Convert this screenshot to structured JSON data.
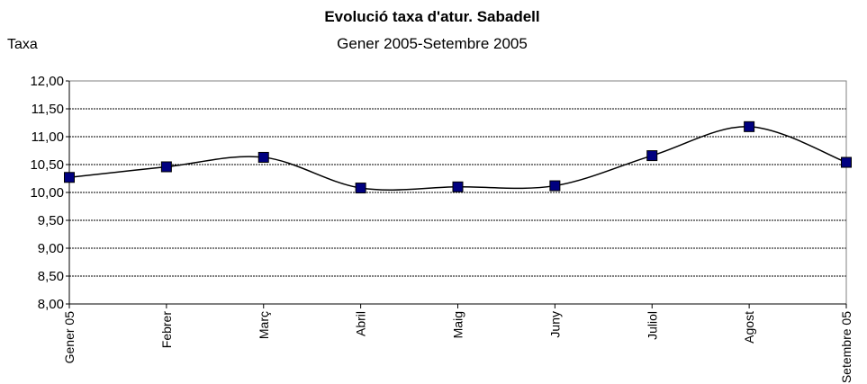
{
  "chart_data": {
    "type": "line",
    "title": "Evolució taxa d'atur. Sabadell",
    "subtitle": "Gener 2005-Setembre 2005",
    "y_label": "Taxa",
    "categories": [
      "Gener 05",
      "Febrer",
      "Març",
      "Abril",
      "Maig",
      "Juny",
      "Juliol",
      "Agost",
      "Setembre 05"
    ],
    "series": [
      {
        "name": "Taxa",
        "color": "#000080",
        "values": [
          10.27,
          10.46,
          10.63,
          10.08,
          10.1,
          10.12,
          10.66,
          11.18,
          10.54
        ]
      }
    ],
    "ylim": [
      8,
      12
    ],
    "yticks": [
      {
        "value": 8,
        "label": "8,00"
      },
      {
        "value": 8.5,
        "label": "8,50"
      },
      {
        "value": 9,
        "label": "9,00"
      },
      {
        "value": 9.5,
        "label": "9,50"
      },
      {
        "value": 10,
        "label": "10,00"
      },
      {
        "value": 10.5,
        "label": "10,50"
      },
      {
        "value": 11,
        "label": "11,00"
      },
      {
        "value": 11.5,
        "label": "11,50"
      },
      {
        "value": 12,
        "label": "12,00"
      }
    ],
    "grid": true
  }
}
